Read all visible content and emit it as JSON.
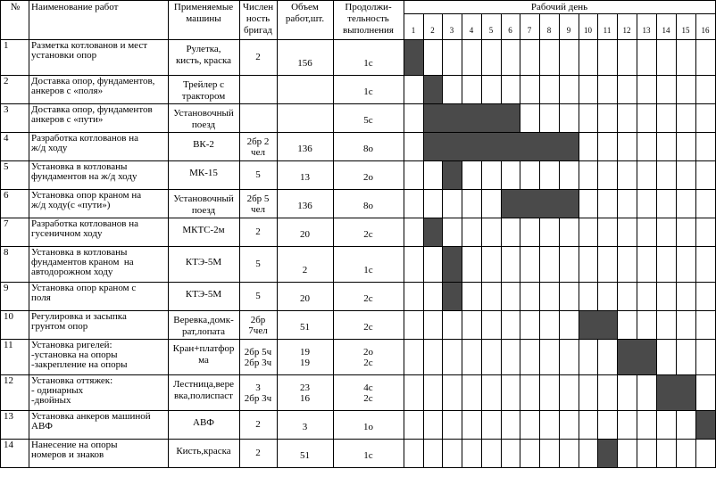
{
  "headers": {
    "num": "№",
    "work": "Наименование работ",
    "machines": [
      "Применяемые",
      "машины"
    ],
    "brigades": [
      "Числен",
      "ность",
      "бригад"
    ],
    "volume": [
      "Объем",
      "работ,шт."
    ],
    "duration": [
      "Продолжи-",
      "тельность",
      "выполнения"
    ],
    "workday": "Рабочий день"
  },
  "days": [
    "1",
    "2",
    "3",
    "4",
    "5",
    "6",
    "7",
    "8",
    "9",
    "10",
    "11",
    "12",
    "13",
    "14",
    "15",
    "16"
  ],
  "rows": [
    {
      "num": "1",
      "work": [
        "Разметка котлованов и мест",
        "установки опор"
      ],
      "machine": [
        "Рулетка,",
        "кисть, краска"
      ],
      "brig": [
        "2"
      ],
      "vol": [
        "156"
      ],
      "dur": [
        "1с"
      ],
      "bars": [
        [
          1,
          1
        ]
      ]
    },
    {
      "num": "2",
      "work": [
        "Доставка опор, фундаментов,",
        "анкеров с «поля»"
      ],
      "machine": [
        "Трейлер с",
        "трактором"
      ],
      "brig": [],
      "vol": [],
      "dur": [
        "1с"
      ],
      "bars": [
        [
          2,
          2
        ]
      ]
    },
    {
      "num": "3",
      "work": [
        "Доставка опор, фундаментов",
        "анкеров с «пути»"
      ],
      "machine": [
        "Установочный",
        "поезд"
      ],
      "brig": [],
      "vol": [],
      "dur": [
        "5с"
      ],
      "bars": [
        [
          2,
          6
        ]
      ]
    },
    {
      "num": "4",
      "work": [
        "Разработка котлованов на",
        "ж/д ходу"
      ],
      "machine": [
        "ВК-2"
      ],
      "brig": [
        "2бр 2",
        "чел"
      ],
      "vol": [
        "136"
      ],
      "dur": [
        "8о"
      ],
      "bars": [
        [
          2,
          9
        ]
      ]
    },
    {
      "num": "5",
      "work": [
        "Установка в котлованы",
        "фундаментов на ж/д ходу"
      ],
      "machine": [
        "МК-15"
      ],
      "brig": [
        "5"
      ],
      "vol": [
        "13"
      ],
      "dur": [
        "2о"
      ],
      "bars": [
        [
          3,
          3
        ]
      ]
    },
    {
      "num": "6",
      "work": [
        "Установка опор краном на",
        "ж/д ходу(с «пути»)"
      ],
      "machine": [
        "Установочный",
        "поезд"
      ],
      "brig": [
        "2бр 5",
        "чел"
      ],
      "vol": [
        "136"
      ],
      "dur": [
        "8о"
      ],
      "bars": [
        [
          6,
          9
        ]
      ]
    },
    {
      "num": "7",
      "work": [
        "Разработка котлованов на",
        "гусеничном ходу"
      ],
      "machine": [
        "МКТС-2м"
      ],
      "brig": [
        "2"
      ],
      "vol": [
        "20"
      ],
      "dur": [
        "2с"
      ],
      "bars": [
        [
          2,
          2
        ]
      ]
    },
    {
      "num": "8",
      "work": [
        "Установка в котлованы",
        "фундаментов краном  на",
        "автодорожном ходу"
      ],
      "machine": [
        "КТЭ-5М"
      ],
      "brig": [
        "5"
      ],
      "vol": [
        "2"
      ],
      "dur": [
        "1с"
      ],
      "bars": [
        [
          3,
          3
        ]
      ]
    },
    {
      "num": "9",
      "work": [
        "Установка опор краном с",
        "поля"
      ],
      "machine": [
        "КТЭ-5М"
      ],
      "brig": [
        "5"
      ],
      "vol": [
        "20"
      ],
      "dur": [
        "2с"
      ],
      "bars": [
        [
          3,
          3
        ]
      ]
    },
    {
      "num": "10",
      "work": [
        "Регулировка и засыпка",
        "грунтом опор"
      ],
      "machine": [
        "Веревка,домк-",
        "рат,лопата"
      ],
      "brig": [
        "2бр",
        "7чел"
      ],
      "vol": [
        "51"
      ],
      "dur": [
        "2с"
      ],
      "bars": [
        [
          10,
          11
        ]
      ]
    },
    {
      "num": "11",
      "work": [
        "Установка ригелей:",
        "-установка на опоры",
        "-закрепление на опоры"
      ],
      "machine": [
        "Кран+платфор",
        "ма"
      ],
      "brig": [
        "2бр 5ч",
        "2бр 3ч"
      ],
      "vol": [
        "19",
        "19"
      ],
      "dur": [
        "2о",
        "2с"
      ],
      "bars": [
        [
          12,
          13
        ]
      ]
    },
    {
      "num": "12",
      "work": [
        "Установка оттяжек:",
        "- одинарных",
        "-двойных"
      ],
      "machine": [
        "Лестница,вере",
        "вка,полиспаст"
      ],
      "brig": [
        "3",
        "2бр 3ч"
      ],
      "vol": [
        "23",
        "16"
      ],
      "dur": [
        "4с",
        "2с"
      ],
      "bars": [
        [
          14,
          15
        ]
      ]
    },
    {
      "num": "13",
      "work": [
        "Установка анкеров машиной",
        "АВФ"
      ],
      "machine": [
        "АВФ"
      ],
      "brig": [
        "2"
      ],
      "vol": [
        "3"
      ],
      "dur": [
        "1о"
      ],
      "bars": [
        [
          16,
          16
        ]
      ]
    },
    {
      "num": "14",
      "work": [
        "Нанесение на опоры",
        "номеров и знаков"
      ],
      "machine": [
        "Кисть,краска"
      ],
      "brig": [
        "2"
      ],
      "vol": [
        "51"
      ],
      "dur": [
        "1с"
      ],
      "bars": [
        [
          11,
          11
        ]
      ]
    }
  ]
}
